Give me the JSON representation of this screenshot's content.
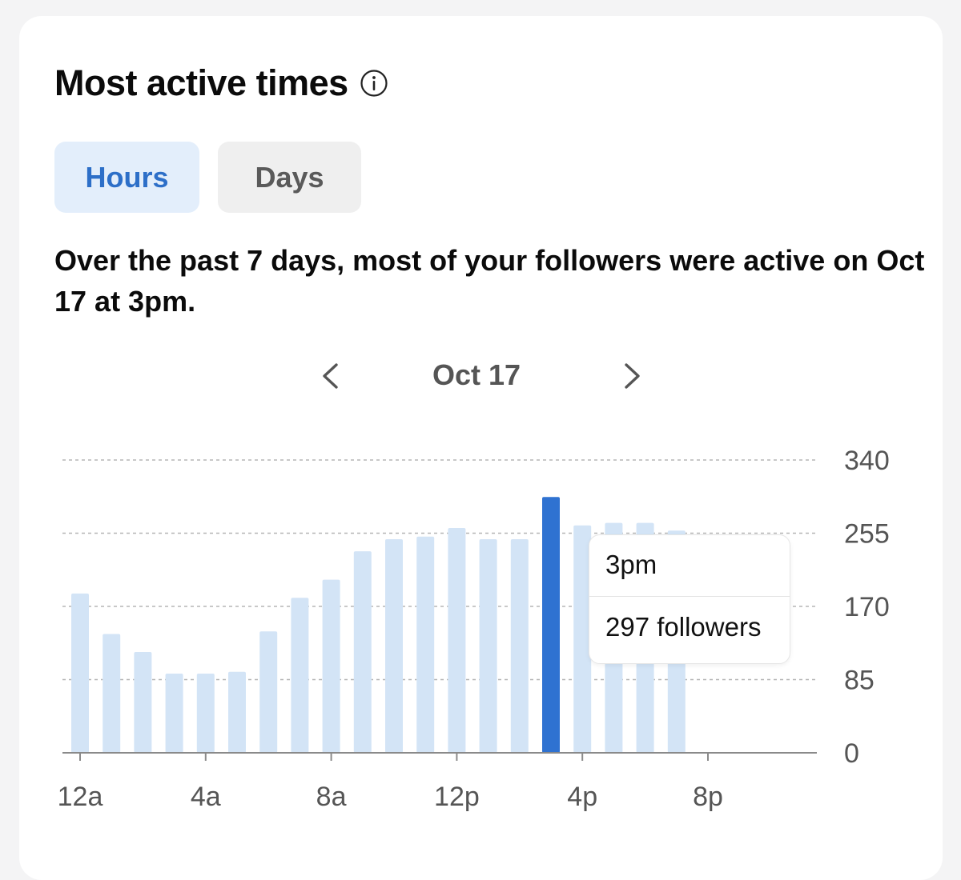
{
  "card": {
    "title": "Most active times",
    "info_icon": "info-circle-icon",
    "tabs": [
      {
        "label": "Hours",
        "selected": true
      },
      {
        "label": "Days",
        "selected": false
      }
    ],
    "summary": "Over the past 7 days, most of your followers were active on Oct 17 at 3pm.",
    "date_nav": {
      "label": "Oct 17",
      "prev_icon": "chevron-left-icon",
      "next_icon": "chevron-right-icon"
    },
    "tooltip": {
      "time": "3pm",
      "value": "297 followers"
    }
  },
  "colors": {
    "bar": "#d3e4f6",
    "bar_highlight": "#2f72d1",
    "tab_active_bg": "#e3eefb",
    "tab_active_text": "#2d6fc8",
    "tab_inactive_bg": "#efefef",
    "grid": "#b5b5b5",
    "axis": "#8a8a8a"
  },
  "chart_data": {
    "type": "bar",
    "categories": [
      "12a",
      "1a",
      "2a",
      "3a",
      "4a",
      "5a",
      "6a",
      "7a",
      "8a",
      "9a",
      "10a",
      "11a",
      "12p",
      "1p",
      "2p",
      "3p",
      "4p",
      "5p",
      "6p",
      "7p",
      "8p",
      "9p",
      "10p",
      "11p"
    ],
    "values": [
      185,
      138,
      117,
      92,
      92,
      94,
      141,
      180,
      201,
      234,
      248,
      251,
      261,
      248,
      248,
      297,
      264,
      267,
      267,
      258,
      null,
      null,
      null,
      null
    ],
    "highlight_index": 15,
    "x_tick_labels": [
      "12a",
      "4a",
      "8a",
      "12p",
      "4p",
      "8p"
    ],
    "x_tick_indices": [
      0,
      4,
      8,
      12,
      16,
      20
    ],
    "y_ticks": [
      0,
      85,
      170,
      255,
      340
    ],
    "ylim": [
      0,
      340
    ],
    "grid": "horizontal-dashed",
    "y_axis_position": "right",
    "title": "",
    "xlabel": "",
    "ylabel": ""
  }
}
